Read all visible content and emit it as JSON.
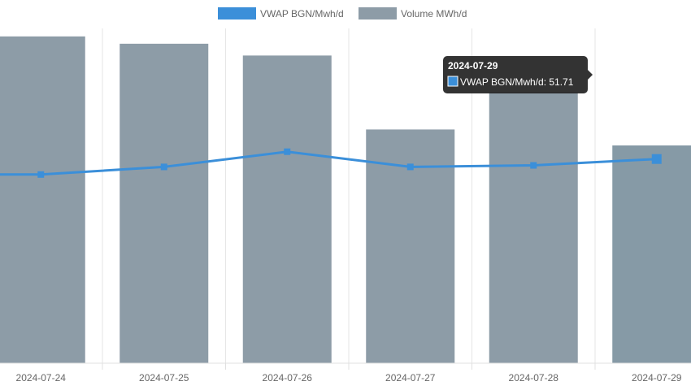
{
  "chart_data": {
    "type": "bar",
    "categories": [
      "2024-07-24",
      "2024-07-25",
      "2024-07-26",
      "2024-07-27",
      "2024-07-28",
      "2024-07-29"
    ],
    "series": [
      {
        "name": "Volume MWh/d",
        "type": "bar",
        "color": "#8d9ca7",
        "values": [
          102.5,
          100.2,
          96.5,
          73.3,
          85.0,
          68.3
        ]
      },
      {
        "name": "VWAP BGN/Mwh/d",
        "type": "line",
        "color": "#3b8fd9",
        "values": [
          51.2,
          51.45,
          51.95,
          51.45,
          51.5,
          51.71
        ]
      }
    ],
    "grid": true,
    "legend": "top-center"
  },
  "tooltip": {
    "title": "2024-07-29",
    "body": "VWAP BGN/Mwh/d: 51.71"
  }
}
